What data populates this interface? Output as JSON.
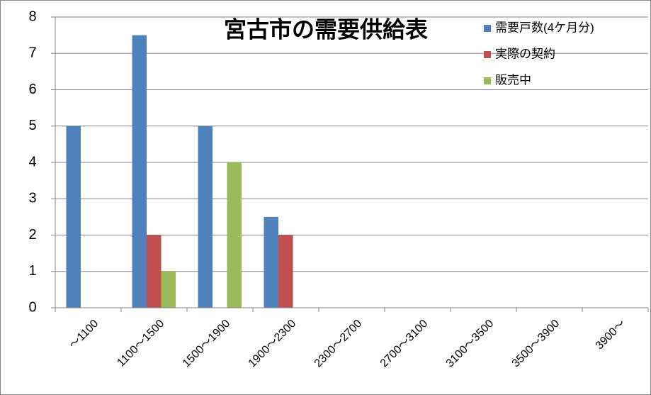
{
  "chart_data": {
    "type": "bar",
    "title": "宮古市の需要供給表",
    "categories": [
      "～1100",
      "1100～1500",
      "1500～1900",
      "1900～2300",
      "2300～2700",
      "2700～3100",
      "3100～3500",
      "3500～3900",
      "3900～"
    ],
    "series": [
      {
        "name": "需要戸数(4ケ月分)",
        "color": "#4f81bd",
        "values": [
          5,
          7.5,
          5,
          2.5,
          null,
          null,
          null,
          null,
          null
        ]
      },
      {
        "name": "実際の契約",
        "color": "#c0504d",
        "values": [
          null,
          2,
          null,
          2,
          null,
          null,
          null,
          null,
          null
        ]
      },
      {
        "name": "販売中",
        "color": "#9bbb59",
        "values": [
          null,
          1,
          4,
          null,
          null,
          null,
          null,
          null,
          null
        ]
      }
    ],
    "ylim": [
      0,
      8
    ],
    "yticks": [
      0,
      1,
      2,
      3,
      4,
      5,
      6,
      7,
      8
    ],
    "grid": true,
    "legend": "top-right"
  }
}
